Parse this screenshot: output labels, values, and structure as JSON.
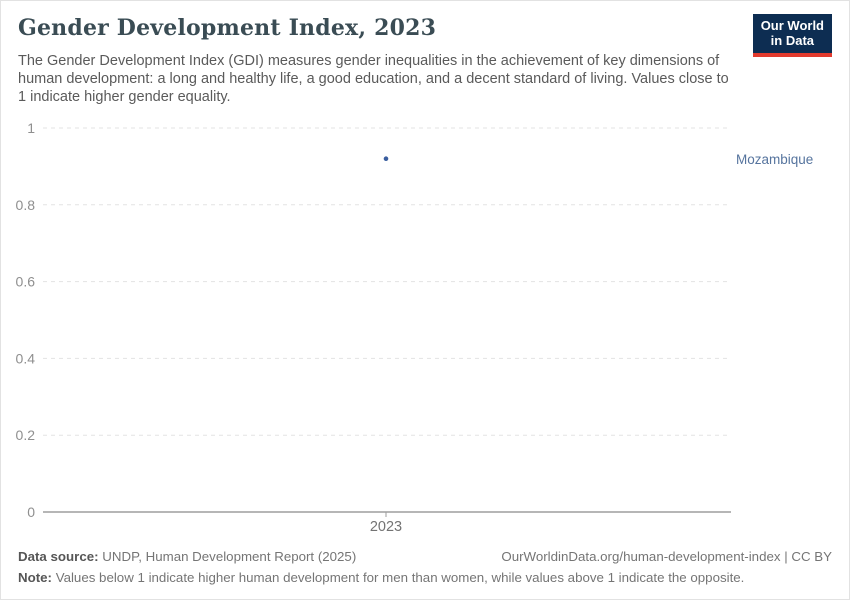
{
  "header": {
    "title": "Gender Development Index, 2023",
    "subtitle": "The Gender Development Index (GDI) measures gender inequalities in the achievement of key dimensions of human development: a long and healthy life, a good education, and a decent standard of living. Values close to 1 indicate higher gender equality.",
    "logo": {
      "line1": "Our World",
      "line2": "in Data",
      "bg_color": "#0d2d52",
      "accent_color": "#e23a2e"
    }
  },
  "chart_data": {
    "type": "scatter",
    "title": "Gender Development Index, 2023",
    "x": [
      2023
    ],
    "xtick_labels": [
      "2023"
    ],
    "series": [
      {
        "name": "Mozambique",
        "values": [
          0.92
        ],
        "color": "#3a5e9f"
      }
    ],
    "xlabel": "",
    "ylabel": "",
    "ylim": [
      0,
      1
    ],
    "yticks": [
      0,
      0.2,
      0.4,
      0.6,
      0.8,
      1
    ],
    "ytick_labels": [
      "0",
      "0.2",
      "0.4",
      "0.6",
      "0.8",
      "1"
    ],
    "grid": "horizontal-dashed",
    "legend_position": "right-of-point",
    "entity_label_color": "#56749e",
    "gridline_color": "#e3e3e3",
    "axis_color": "#9e9e9e",
    "tick_label_color": "#8f8f8f"
  },
  "footer": {
    "data_source_label": "Data source:",
    "data_source": "UNDP, Human Development Report (2025)",
    "attribution": "OurWorldinData.org/human-development-index | CC BY",
    "note_label": "Note:",
    "note": "Values below 1 indicate higher human development for men than women, while values above 1 indicate the opposite."
  }
}
